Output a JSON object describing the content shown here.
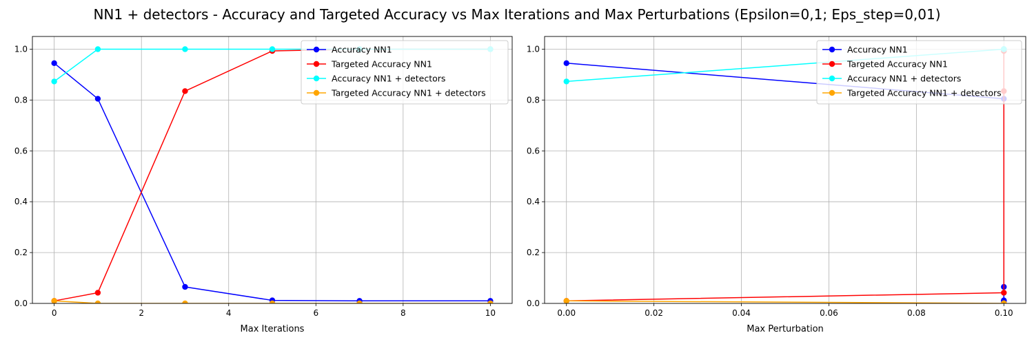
{
  "figure": {
    "title": "NN1 + detectors - Accuracy and Targeted Accuracy vs Max Iterations and Max Perturbations (Epsilon=0,1; Eps_step=0,01)"
  },
  "chart_data": [
    {
      "type": "line",
      "title": "",
      "xlabel": "Max Iterations",
      "ylabel": "",
      "xlim": [
        -0.5,
        10.5
      ],
      "ylim": [
        0,
        1.05
      ],
      "xticks": [
        0,
        2,
        4,
        6,
        8,
        10
      ],
      "xtick_labels": [
        "0",
        "2",
        "4",
        "6",
        "8",
        "10"
      ],
      "yticks": [
        0.0,
        0.2,
        0.4,
        0.6,
        0.8,
        1.0
      ],
      "ytick_labels": [
        "0.0",
        "0.2",
        "0.4",
        "0.6",
        "0.8",
        "1.0"
      ],
      "grid": true,
      "legend_position": "top-right",
      "series": [
        {
          "name": "Accuracy NN1",
          "color": "#0000ff",
          "x": [
            0,
            1,
            3,
            5,
            7,
            10
          ],
          "y": [
            0.945,
            0.805,
            0.065,
            0.012,
            0.01,
            0.01
          ]
        },
        {
          "name": "Targeted Accuracy NN1",
          "color": "#ff0000",
          "x": [
            0,
            1,
            3,
            5,
            7,
            10
          ],
          "y": [
            0.01,
            0.042,
            0.835,
            0.993,
            1.0,
            1.0
          ]
        },
        {
          "name": "Accuracy NN1 + detectors",
          "color": "#00ffff",
          "x": [
            0,
            1,
            3,
            5,
            7,
            10
          ],
          "y": [
            0.873,
            1.0,
            1.0,
            1.0,
            1.0,
            1.0
          ]
        },
        {
          "name": "Targeted Accuracy NN1 + detectors",
          "color": "#ffa500",
          "x": [
            0,
            1,
            3,
            5,
            7,
            10
          ],
          "y": [
            0.01,
            0.0,
            0.0,
            0.0,
            0.0,
            0.0
          ]
        }
      ]
    },
    {
      "type": "line",
      "title": "",
      "xlabel": "Max Perturbation",
      "ylabel": "",
      "xlim": [
        -0.005,
        0.105
      ],
      "ylim": [
        0,
        1.05
      ],
      "xticks": [
        0.0,
        0.02,
        0.04,
        0.06,
        0.08,
        0.1
      ],
      "xtick_labels": [
        "0.00",
        "0.02",
        "0.04",
        "0.06",
        "0.08",
        "0.10"
      ],
      "yticks": [
        0.0,
        0.2,
        0.4,
        0.6,
        0.8,
        1.0
      ],
      "ytick_labels": [
        "0.0",
        "0.2",
        "0.4",
        "0.6",
        "0.8",
        "1.0"
      ],
      "grid": true,
      "legend_position": "top-right",
      "series": [
        {
          "name": "Accuracy NN1",
          "color": "#0000ff",
          "x": [
            0.0,
            0.1,
            0.1,
            0.1,
            0.1,
            0.1
          ],
          "y": [
            0.945,
            0.805,
            0.065,
            0.012,
            0.01,
            0.01
          ]
        },
        {
          "name": "Targeted Accuracy NN1",
          "color": "#ff0000",
          "x": [
            0.0,
            0.1,
            0.1,
            0.1,
            0.1,
            0.1
          ],
          "y": [
            0.01,
            0.042,
            0.835,
            0.993,
            1.0,
            1.0
          ]
        },
        {
          "name": "Accuracy NN1 + detectors",
          "color": "#00ffff",
          "x": [
            0.0,
            0.1,
            0.1,
            0.1,
            0.1,
            0.1
          ],
          "y": [
            0.873,
            1.0,
            1.0,
            1.0,
            1.0,
            1.0
          ]
        },
        {
          "name": "Targeted Accuracy NN1 + detectors",
          "color": "#ffa500",
          "x": [
            0.0,
            0.1,
            0.1,
            0.1,
            0.1,
            0.1
          ],
          "y": [
            0.01,
            0.0,
            0.0,
            0.0,
            0.0,
            0.0
          ]
        }
      ]
    }
  ]
}
